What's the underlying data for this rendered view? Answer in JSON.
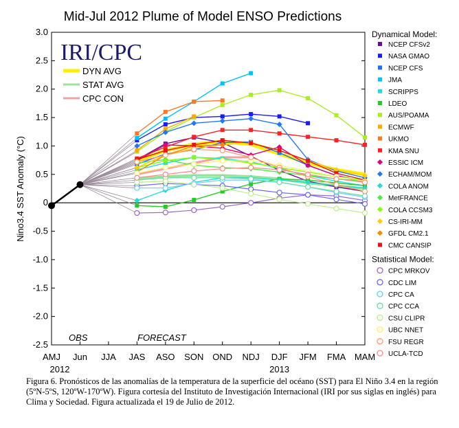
{
  "chart_data": {
    "type": "line",
    "title": "Mid-Jul 2012 Plume of Model ENSO Predictions",
    "ylabel": "Nino3.4 SST Anomaly (°C)",
    "ylim": [
      -2.5,
      3.0
    ],
    "yticks": [
      "3.0",
      "2.5",
      "2.0",
      "1.5",
      "1.0",
      "0.5",
      "0",
      "-0.5",
      "-1.0",
      "-1.5",
      "-2.0",
      "-2.5"
    ],
    "categories": [
      "AMJ",
      "Jun",
      "JJA",
      "JAS",
      "ASO",
      "SON",
      "OND",
      "NDJ",
      "DJF",
      "JFM",
      "FMA",
      "MAM"
    ],
    "year_labels": [
      {
        "text": "2012",
        "at": "AMJ"
      },
      {
        "text": "2013",
        "at": "DJF"
      }
    ],
    "region_labels": {
      "obs": "OBS",
      "forecast": "FORECAST"
    },
    "logo": "IRI/CPC",
    "avg_legend": [
      {
        "name": "DYN AVG",
        "color": "#ffee00"
      },
      {
        "name": "STAT AVG",
        "color": "#9be39b"
      },
      {
        "name": "CPC CON",
        "color": "#f4a0a0"
      }
    ],
    "observed": [
      -0.05,
      0.32
    ],
    "dyn_avg": [
      null,
      null,
      null,
      0.74,
      0.92,
      1.03,
      1.08,
      1.03,
      0.86,
      0.7,
      0.58,
      0.5
    ],
    "stat_avg": [
      null,
      null,
      null,
      0.42,
      0.46,
      0.48,
      0.48,
      0.46,
      0.42,
      0.35,
      0.3,
      0.25
    ],
    "cpc_con": [
      null,
      null,
      null,
      0.5,
      0.6,
      0.7,
      0.8,
      0.8,
      null,
      null,
      null,
      null
    ],
    "dynamical_title": "Dynamical Model:",
    "statistical_title": "Statistical Model:",
    "dynamical_models": [
      {
        "name": "NCEP CFSv2",
        "color": "#6a0d91",
        "values": [
          null,
          null,
          null,
          0.76,
          1.04,
          1.15,
          1.06,
          0.82,
          0.57,
          0.38,
          0.28,
          0.2
        ]
      },
      {
        "name": "NASA GMAO",
        "color": "#1a1aff",
        "values": [
          null,
          null,
          null,
          1.1,
          1.38,
          1.5,
          1.52,
          1.56,
          1.52,
          1.4,
          null,
          null
        ]
      },
      {
        "name": "NCEP CFS",
        "color": "#1e6eff",
        "values": [
          null,
          null,
          null,
          0.68,
          0.86,
          0.93,
          1.06,
          1.07,
          0.88,
          0.66,
          0.48,
          0.38
        ]
      },
      {
        "name": "JMA",
        "color": "#00c0ff",
        "values": [
          null,
          null,
          null,
          1.14,
          1.48,
          1.78,
          2.1,
          2.28,
          null,
          null,
          null,
          null
        ]
      },
      {
        "name": "SCRIPPS",
        "color": "#22dddd",
        "values": [
          null,
          null,
          null,
          0.58,
          0.7,
          0.8,
          0.78,
          0.72,
          0.6,
          0.48,
          0.38,
          0.3
        ]
      },
      {
        "name": "LDEO",
        "color": "#22cc22",
        "values": [
          null,
          null,
          null,
          -0.05,
          -0.07,
          0.05,
          0.2,
          0.33,
          0.42,
          0.4,
          0.35,
          0.3
        ]
      },
      {
        "name": "AUS/POAMA",
        "color": "#aaee22",
        "values": [
          null,
          null,
          null,
          0.9,
          1.25,
          1.5,
          1.72,
          1.9,
          1.98,
          1.84,
          1.54,
          1.15
        ]
      },
      {
        "name": "ECMWF",
        "color": "#ffaa00",
        "values": [
          null,
          null,
          null,
          0.92,
          1.3,
          1.52,
          null,
          null,
          null,
          null,
          null,
          null
        ]
      },
      {
        "name": "UKMO",
        "color": "#ff7722",
        "values": [
          null,
          null,
          null,
          1.22,
          1.6,
          1.78,
          1.8,
          null,
          null,
          null,
          null,
          null
        ]
      },
      {
        "name": "KMA SNU",
        "color": "#ff2222",
        "values": [
          null,
          null,
          null,
          0.78,
          0.98,
          1.16,
          1.28,
          1.28,
          1.22,
          1.16,
          1.1,
          1.02
        ]
      },
      {
        "name": "ESSIC ICM",
        "color": "#dd0077",
        "values": [
          null,
          null,
          null,
          0.74,
          1.02,
          1.0,
          0.96,
          0.84,
          0.98,
          0.66,
          0.48,
          0.36
        ]
      },
      {
        "name": "ECHAM/MOM",
        "color": "#2277ff",
        "values": [
          null,
          null,
          null,
          1.0,
          1.24,
          1.4,
          1.44,
          1.48,
          1.38,
          0.76,
          0.56,
          0.44
        ]
      },
      {
        "name": "COLA ANOM",
        "color": "#22ddcc",
        "values": [
          null,
          null,
          null,
          0.04,
          0.22,
          0.36,
          0.44,
          0.44,
          0.4,
          0.36,
          0.3,
          0.26
        ]
      },
      {
        "name": "MetFRANCE",
        "color": "#44ee44",
        "values": [
          null,
          null,
          null,
          0.7,
          0.76,
          0.66,
          0.62,
          0.6,
          0.54,
          0.48,
          0.42,
          0.38
        ]
      },
      {
        "name": "COLA CCSM3",
        "color": "#88ff00",
        "values": [
          null,
          null,
          null,
          0.62,
          0.74,
          0.8,
          0.76,
          0.7,
          0.62,
          0.54,
          0.46,
          0.4
        ]
      },
      {
        "name": "CS-IRI-MM",
        "color": "#ffcc00",
        "values": [
          null,
          null,
          null,
          0.62,
          0.84,
          0.96,
          1.02,
          1.06,
          0.92,
          0.74,
          0.58,
          0.48
        ]
      },
      {
        "name": "GFDL CM2.1",
        "color": "#ff8800",
        "values": [
          null,
          null,
          null,
          0.54,
          0.84,
          1.0,
          1.02,
          null,
          null,
          null,
          null,
          null
        ]
      },
      {
        "name": "CMC CANSIP",
        "color": "#ee1111",
        "values": [
          null,
          null,
          null,
          0.76,
          0.92,
          1.02,
          1.1,
          1.05,
          0.92,
          0.74,
          0.52,
          0.4
        ]
      }
    ],
    "statistical_models": [
      {
        "name": "CPC MRKOV",
        "color": "#9966cc",
        "values": [
          null,
          null,
          null,
          -0.18,
          -0.17,
          -0.13,
          -0.07,
          0.0,
          0.08,
          0.14,
          0.12,
          0.04
        ]
      },
      {
        "name": "CDC LIM",
        "color": "#6666ff",
        "values": [
          null,
          null,
          null,
          0.3,
          0.34,
          0.32,
          0.3,
          0.24,
          0.18,
          0.14,
          0.06,
          -0.02
        ]
      },
      {
        "name": "CPC CA",
        "color": "#66ccff",
        "values": [
          null,
          null,
          null,
          0.26,
          0.26,
          0.34,
          0.4,
          0.4,
          0.36,
          0.28,
          0.18,
          0.1
        ]
      },
      {
        "name": "CPC CCA",
        "color": "#66ddaa",
        "values": [
          null,
          null,
          null,
          0.4,
          0.44,
          0.44,
          0.44,
          0.42,
          0.36,
          0.28,
          0.2,
          0.12
        ]
      },
      {
        "name": "CSU CLIPR",
        "color": "#bbee88",
        "values": [
          null,
          null,
          null,
          0.36,
          0.38,
          0.32,
          0.26,
          0.16,
          0.06,
          -0.02,
          -0.1,
          -0.18
        ]
      },
      {
        "name": "UBC NNET",
        "color": "#ffee66",
        "values": [
          null,
          null,
          null,
          0.52,
          0.62,
          0.68,
          0.74,
          0.74,
          0.66,
          0.56,
          0.46,
          0.38
        ]
      },
      {
        "name": "FSU REGR",
        "color": "#ff9966",
        "values": [
          null,
          null,
          null,
          0.72,
          0.84,
          0.94,
          0.92,
          0.8,
          0.62,
          0.46,
          0.32,
          0.2
        ]
      },
      {
        "name": "UCLA-TCD",
        "color": "#ff8888",
        "values": [
          null,
          null,
          null,
          0.44,
          0.5,
          0.56,
          0.6,
          0.62,
          0.58,
          0.5,
          0.42,
          0.36
        ]
      }
    ]
  },
  "caption": "Figura 6. Pronósticos de las anomalías de la temperatura de la superficie del océano (SST) para El Niño 3.4 en la región (5ºN-5ºS, 120ºW-170ºW). Figura cortesía del Instituto de Investigación Internacional (IRI por sus siglas en inglés) para Clima y Sociedad. Figura actualizada el 19 de Julio de 2012."
}
